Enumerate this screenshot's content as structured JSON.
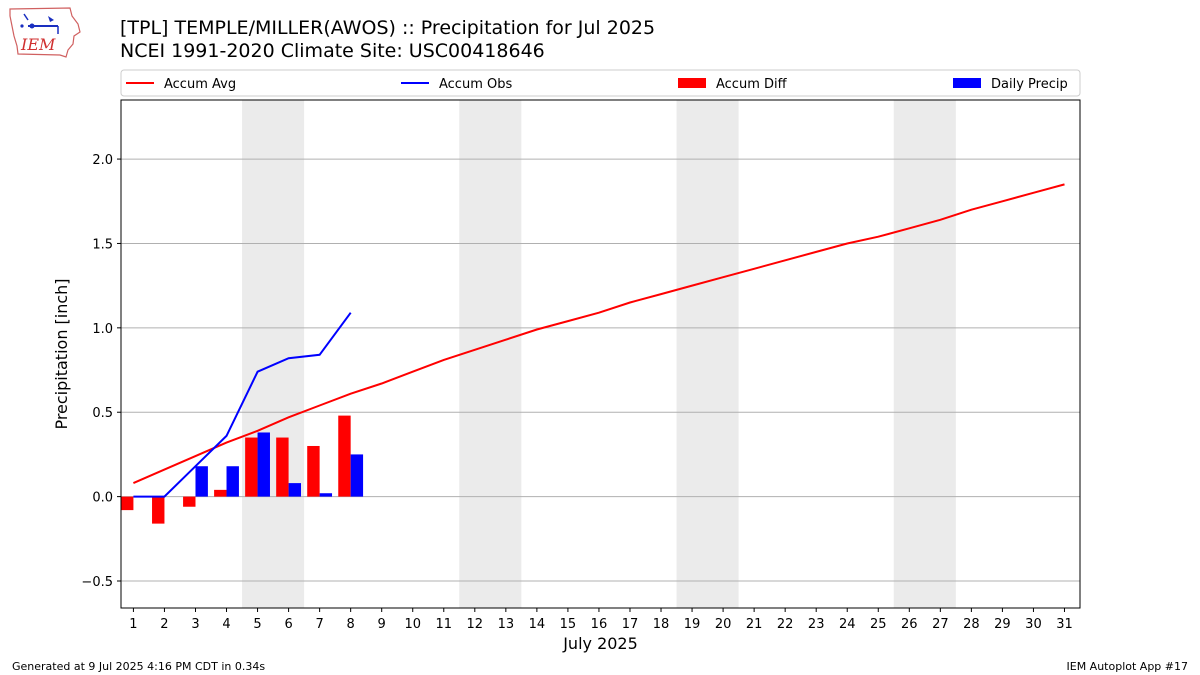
{
  "header": {
    "title_line1": "[TPL] TEMPLE/MILLER(AWOS) :: Precipitation for Jul 2025",
    "title_line2": "NCEI 1991-2020 Climate Site: USC00418646",
    "logo_text": "IEM"
  },
  "footer": {
    "generated": "Generated at 9 Jul 2025 4:16 PM CDT in 0.34s",
    "app": "IEM Autoplot App #17"
  },
  "chart_data": {
    "type": "line",
    "xlabel": "July 2025",
    "ylabel": "Precipitation [inch]",
    "xlim": [
      0.6,
      31.5
    ],
    "ylim": [
      -0.66,
      2.35
    ],
    "yticks": [
      -0.5,
      0.0,
      0.5,
      1.0,
      1.5,
      2.0
    ],
    "ytick_labels": [
      "−0.5",
      "0.0",
      "0.5",
      "1.0",
      "1.5",
      "2.0"
    ],
    "xticks": [
      1,
      2,
      3,
      4,
      5,
      6,
      7,
      8,
      9,
      10,
      11,
      12,
      13,
      14,
      15,
      16,
      17,
      18,
      19,
      20,
      21,
      22,
      23,
      24,
      25,
      26,
      27,
      28,
      29,
      30,
      31
    ],
    "grid": "horizontal",
    "weekend_shading": [
      [
        4.5,
        6.5
      ],
      [
        11.5,
        13.5
      ],
      [
        18.5,
        20.5
      ],
      [
        25.5,
        27.5
      ]
    ],
    "legend_position": "top",
    "series": [
      {
        "name": "Accum Avg",
        "kind": "line",
        "color": "#ff0000",
        "x": [
          1,
          2,
          3,
          4,
          5,
          6,
          7,
          8,
          9,
          10,
          11,
          12,
          13,
          14,
          15,
          16,
          17,
          18,
          19,
          20,
          21,
          22,
          23,
          24,
          25,
          26,
          27,
          28,
          29,
          30,
          31
        ],
        "values": [
          0.08,
          0.16,
          0.24,
          0.32,
          0.39,
          0.47,
          0.54,
          0.61,
          0.67,
          0.74,
          0.81,
          0.87,
          0.93,
          0.99,
          1.04,
          1.09,
          1.15,
          1.2,
          1.25,
          1.3,
          1.35,
          1.4,
          1.45,
          1.5,
          1.54,
          1.59,
          1.64,
          1.7,
          1.75,
          1.8,
          1.85
        ]
      },
      {
        "name": "Accum Obs",
        "kind": "line",
        "color": "#0000ff",
        "x": [
          1,
          2,
          3,
          4,
          5,
          6,
          7,
          8
        ],
        "values": [
          0.0,
          0.0,
          0.18,
          0.36,
          0.74,
          0.82,
          0.84,
          1.09
        ]
      },
      {
        "name": "Accum Diff",
        "kind": "bar",
        "color": "#ff0000",
        "x": [
          1,
          2,
          3,
          4,
          5,
          6,
          7,
          8
        ],
        "values": [
          -0.08,
          -0.16,
          -0.06,
          0.04,
          0.35,
          0.35,
          0.3,
          0.48
        ]
      },
      {
        "name": "Daily Precip",
        "kind": "bar",
        "color": "#0000ff",
        "x": [
          1,
          2,
          3,
          4,
          5,
          6,
          7,
          8
        ],
        "values": [
          0.0,
          0.0,
          0.18,
          0.18,
          0.38,
          0.08,
          0.02,
          0.25
        ]
      }
    ]
  }
}
